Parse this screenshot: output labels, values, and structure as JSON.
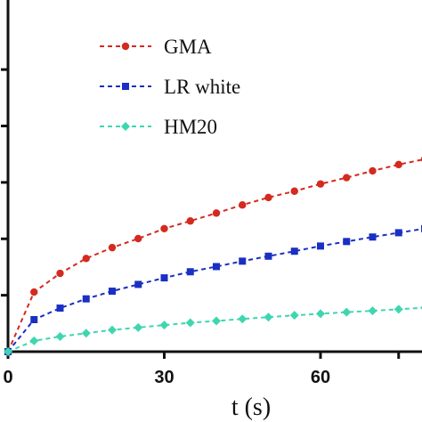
{
  "chart_data": {
    "type": "line",
    "title": "",
    "xlabel": "t (s)",
    "ylabel": "",
    "xlim": [
      0,
      80
    ],
    "ylim": [
      0,
      1.25
    ],
    "xticks": [
      0,
      30,
      60
    ],
    "x": [
      0,
      5,
      10,
      15,
      20,
      25,
      30,
      35,
      40,
      45,
      50,
      55,
      60,
      65,
      70,
      75,
      80
    ],
    "series": [
      {
        "name": "GMA",
        "color": "#d42a1f",
        "marker": "circle",
        "values": [
          0,
          0.264,
          0.347,
          0.413,
          0.461,
          0.501,
          0.545,
          0.579,
          0.614,
          0.65,
          0.683,
          0.711,
          0.743,
          0.771,
          0.801,
          0.829,
          0.853
        ]
      },
      {
        "name": "LR white",
        "color": "#1a2fc4",
        "marker": "square",
        "values": [
          0,
          0.142,
          0.193,
          0.234,
          0.268,
          0.298,
          0.327,
          0.354,
          0.377,
          0.401,
          0.423,
          0.445,
          0.468,
          0.488,
          0.508,
          0.527,
          0.545
        ]
      },
      {
        "name": "HM20",
        "color": "#3ed6b0",
        "marker": "diamond",
        "values": [
          0,
          0.048,
          0.067,
          0.082,
          0.096,
          0.107,
          0.118,
          0.128,
          0.136,
          0.145,
          0.153,
          0.161,
          0.168,
          0.175,
          0.181,
          0.188,
          0.195
        ]
      }
    ],
    "grid": false,
    "legend_position": "top-center"
  }
}
